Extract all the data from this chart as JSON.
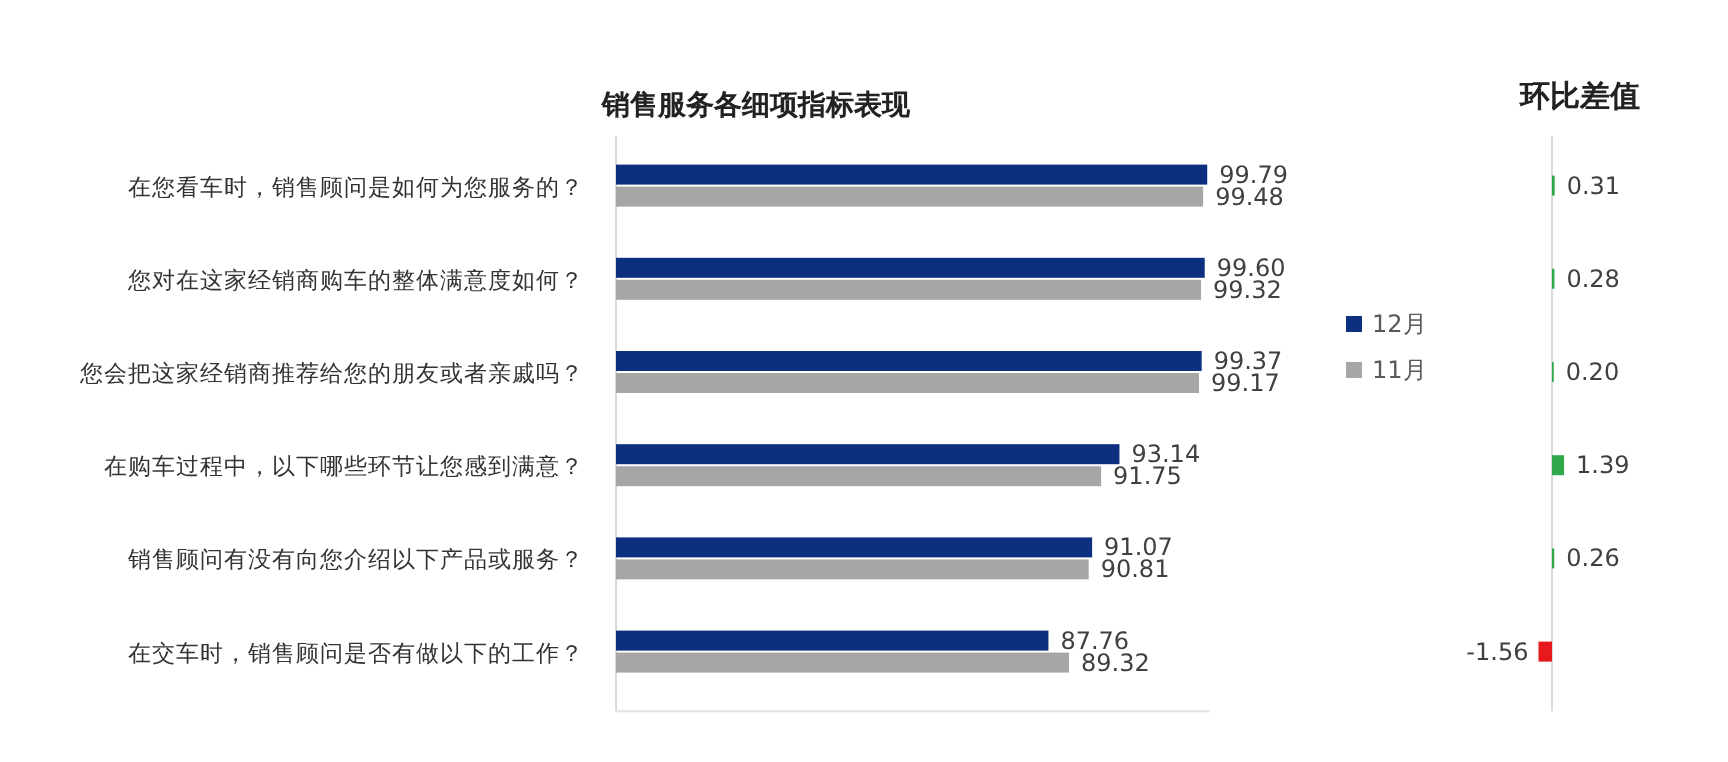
{
  "chart_data": [
    {
      "type": "bar",
      "orientation": "horizontal",
      "title": "销售服务各细项指标表现",
      "categories": [
        "在您看车时，销售顾问是如何为您服务的？",
        "您对在这家经销商购车的整体满意度如何？",
        "您会把这家经销商推荐给您的朋友或者亲戚吗？",
        "在购车过程中，以下哪些环节让您感到满意？",
        "销售顾问有没有向您介绍以下产品或服务？",
        "在交车时，销售顾问是否有做以下的工作？"
      ],
      "series": [
        {
          "name": "12月",
          "color": "#0d2f80",
          "values": [
            99.79,
            99.6,
            99.37,
            93.14,
            91.07,
            87.76
          ],
          "value_labels": [
            "99.79",
            "99.60",
            "99.37",
            "93.14",
            "91.07",
            "87.76"
          ]
        },
        {
          "name": "11月",
          "color": "#a6a6a6",
          "values": [
            99.48,
            99.32,
            99.17,
            91.75,
            90.81,
            89.32
          ],
          "value_labels": [
            "99.48",
            "99.32",
            "99.17",
            "91.75",
            "90.81",
            "89.32"
          ]
        }
      ],
      "xlim": [
        55,
        100
      ],
      "legend": "right"
    },
    {
      "type": "bar",
      "orientation": "horizontal",
      "title": "环比差值",
      "categories": [
        null,
        null,
        null,
        null,
        null,
        null
      ],
      "values": [
        0.31,
        0.28,
        0.2,
        1.39,
        0.26,
        -1.56
      ],
      "value_labels": [
        "0.31",
        "0.28",
        "0.20",
        "1.39",
        "0.26",
        "-1.56"
      ],
      "colors": [
        "#2ea84a",
        "#2ea84a",
        "#2ea84a",
        "#2ea84a",
        "#2ea84a",
        "#e8191c"
      ]
    }
  ]
}
